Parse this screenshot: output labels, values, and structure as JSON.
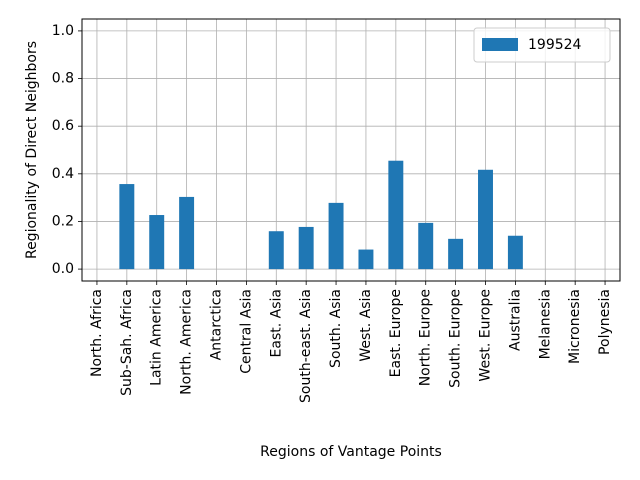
{
  "chart_data": {
    "type": "bar",
    "title": "",
    "xlabel": "Regions of Vantage Points",
    "ylabel": "Regionality of Direct Neighbors",
    "ylim": [
      -0.05,
      1.05
    ],
    "yticks": [
      0.0,
      0.2,
      0.4,
      0.6,
      0.8,
      1.0
    ],
    "ytick_labels": [
      "0.0",
      "0.2",
      "0.4",
      "0.6",
      "0.8",
      "1.0"
    ],
    "grid": true,
    "legend_position": "top-right",
    "categories": [
      "North. Africa",
      "Sub-Sah. Africa",
      "Latin America",
      "North. America",
      "Antarctica",
      "Central Asia",
      "East. Asia",
      "South-east. Asia",
      "South. Asia",
      "West. Asia",
      "East. Europe",
      "North. Europe",
      "South. Europe",
      "West. Europe",
      "Australia",
      "Melanesia",
      "Micronesia",
      "Polynesia"
    ],
    "series": [
      {
        "name": "199524",
        "color": "#1f77b4",
        "values": [
          0,
          0.357,
          0.227,
          0.303,
          0,
          0,
          0.159,
          0.177,
          0.278,
          0.082,
          0.455,
          0.194,
          0.127,
          0.417,
          0.14,
          0,
          0,
          0
        ]
      }
    ]
  }
}
